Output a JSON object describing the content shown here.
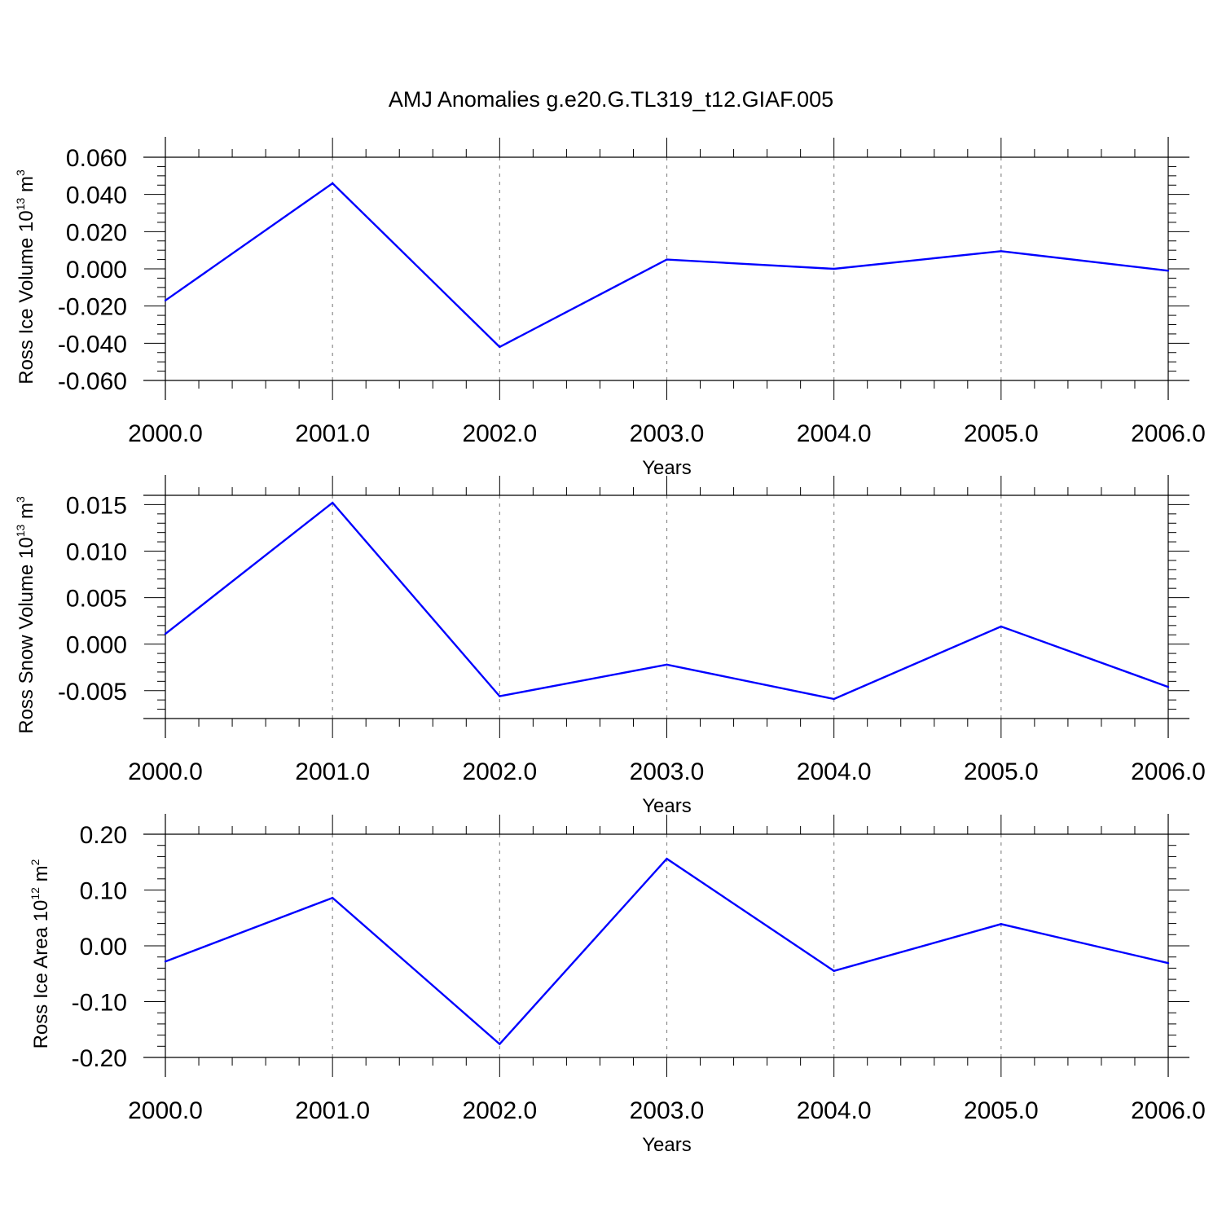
{
  "figure": {
    "title": "AMJ Anomalies g.e20.G.TL319_t12.GIAF.005"
  },
  "chart_data": [
    {
      "type": "line",
      "title": "",
      "xlabel": "Years",
      "ylabel": {
        "text": "Ross Ice Volume 10",
        "exp": "13",
        "unit": " m",
        "unit_exp": "3"
      },
      "xlim": [
        2000,
        2006
      ],
      "ylim": [
        -0.06,
        0.06
      ],
      "x_ticks": [
        2000,
        2001,
        2002,
        2003,
        2004,
        2005,
        2006
      ],
      "x_tick_labels": [
        "2000.0",
        "2001.0",
        "2002.0",
        "2003.0",
        "2004.0",
        "2005.0",
        "2006.0"
      ],
      "y_ticks": [
        -0.06,
        -0.04,
        -0.02,
        0.0,
        0.02,
        0.04,
        0.06
      ],
      "y_tick_labels": [
        "-0.060",
        "-0.040",
        "-0.020",
        "0.000",
        "0.020",
        "0.040",
        "0.060"
      ],
      "y_minor_step": 0.005,
      "grid": "vertical dashed at major x ticks",
      "series": [
        {
          "color": "#0000ff",
          "x": [
            2000,
            2001,
            2002,
            2003,
            2004,
            2005,
            2006
          ],
          "y": [
            -0.017,
            0.046,
            -0.042,
            0.005,
            0.0,
            0.0095,
            -0.001
          ]
        }
      ]
    },
    {
      "type": "line",
      "title": "",
      "xlabel": "Years",
      "ylabel": {
        "text": "Ross Snow Volume 10",
        "exp": "13",
        "unit": " m",
        "unit_exp": "3"
      },
      "xlim": [
        2000,
        2006
      ],
      "ylim": [
        -0.008,
        0.016
      ],
      "x_ticks": [
        2000,
        2001,
        2002,
        2003,
        2004,
        2005,
        2006
      ],
      "x_tick_labels": [
        "2000.0",
        "2001.0",
        "2002.0",
        "2003.0",
        "2004.0",
        "2005.0",
        "2006.0"
      ],
      "y_ticks": [
        -0.005,
        0.0,
        0.005,
        0.01,
        0.015
      ],
      "y_tick_labels": [
        "-0.005",
        "0.000",
        "0.005",
        "0.010",
        "0.015"
      ],
      "y_minor_step": 0.001,
      "grid": "vertical dashed at major x ticks",
      "series": [
        {
          "color": "#0000ff",
          "x": [
            2000,
            2001,
            2002,
            2003,
            2004,
            2005,
            2006
          ],
          "y": [
            0.0011,
            0.0152,
            -0.0056,
            -0.0022,
            -0.0059,
            0.0019,
            -0.0046
          ]
        }
      ]
    },
    {
      "type": "line",
      "title": "",
      "xlabel": "Years",
      "ylabel": {
        "text": "Ross Ice Area 10",
        "exp": "12",
        "unit": " m",
        "unit_exp": "2"
      },
      "xlim": [
        2000,
        2006
      ],
      "ylim": [
        -0.2,
        0.2
      ],
      "x_ticks": [
        2000,
        2001,
        2002,
        2003,
        2004,
        2005,
        2006
      ],
      "x_tick_labels": [
        "2000.0",
        "2001.0",
        "2002.0",
        "2003.0",
        "2004.0",
        "2005.0",
        "2006.0"
      ],
      "y_ticks": [
        -0.2,
        -0.1,
        0.0,
        0.1,
        0.2
      ],
      "y_tick_labels": [
        "-0.20",
        "-0.10",
        "0.00",
        "0.10",
        "0.20"
      ],
      "y_minor_step": 0.02,
      "grid": "vertical dashed at major x ticks",
      "series": [
        {
          "color": "#0000ff",
          "x": [
            2000,
            2001,
            2002,
            2003,
            2004,
            2005,
            2006
          ],
          "y": [
            -0.028,
            0.086,
            -0.176,
            0.156,
            -0.045,
            0.039,
            -0.031
          ]
        }
      ]
    }
  ]
}
